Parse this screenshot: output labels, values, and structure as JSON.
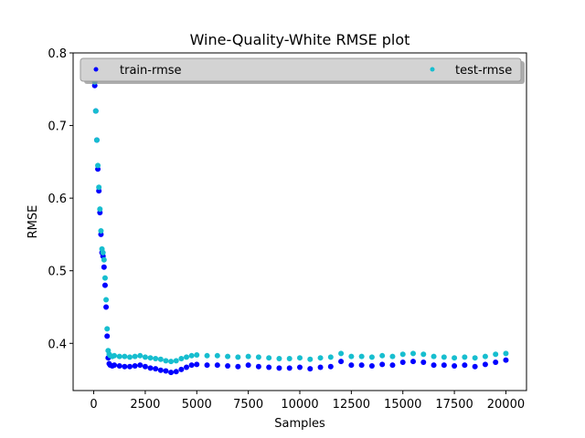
{
  "chart_data": {
    "type": "scatter",
    "title": "Wine-Quality-White RMSE plot",
    "xlabel": "Samples",
    "ylabel": "RMSE",
    "xlim": [
      -1000,
      21000
    ],
    "ylim": [
      0.335,
      0.8
    ],
    "xticks": [
      0,
      2500,
      5000,
      7500,
      10000,
      12500,
      15000,
      17500,
      20000
    ],
    "yticks": [
      0.4,
      0.5,
      0.6,
      0.7,
      0.8
    ],
    "xtick_labels": [
      "0",
      "2500",
      "5000",
      "7500",
      "10000",
      "12500",
      "15000",
      "17500",
      "20000"
    ],
    "ytick_labels": [
      "0.4",
      "0.5",
      "0.6",
      "0.7",
      "0.8"
    ],
    "grid": false,
    "legend": {
      "placement": "top",
      "entries": [
        "train-rmse",
        "test-rmse"
      ]
    },
    "series": [
      {
        "name": "train-rmse",
        "color": "#0000ff",
        "x": [
          0,
          50,
          100,
          150,
          200,
          250,
          300,
          350,
          400,
          450,
          500,
          550,
          600,
          650,
          700,
          750,
          800,
          900,
          1000,
          1250,
          1500,
          1750,
          2000,
          2250,
          2500,
          2750,
          3000,
          3250,
          3500,
          3750,
          4000,
          4250,
          4500,
          4750,
          5000,
          5500,
          6000,
          6500,
          7000,
          7500,
          8000,
          8500,
          9000,
          9500,
          10000,
          10500,
          11000,
          11500,
          12000,
          12500,
          13000,
          13500,
          14000,
          14500,
          15000,
          15500,
          16000,
          16500,
          17000,
          17500,
          18000,
          18500,
          19000,
          19500,
          20000
        ],
        "y": [
          0.77,
          0.755,
          0.72,
          0.68,
          0.64,
          0.61,
          0.58,
          0.55,
          0.525,
          0.52,
          0.505,
          0.48,
          0.45,
          0.41,
          0.38,
          0.372,
          0.37,
          0.369,
          0.37,
          0.369,
          0.368,
          0.368,
          0.369,
          0.37,
          0.368,
          0.366,
          0.365,
          0.363,
          0.362,
          0.36,
          0.361,
          0.364,
          0.367,
          0.37,
          0.371,
          0.37,
          0.37,
          0.369,
          0.368,
          0.37,
          0.368,
          0.367,
          0.366,
          0.366,
          0.367,
          0.365,
          0.367,
          0.368,
          0.375,
          0.37,
          0.37,
          0.369,
          0.371,
          0.37,
          0.374,
          0.375,
          0.374,
          0.37,
          0.37,
          0.369,
          0.37,
          0.368,
          0.371,
          0.374,
          0.377
        ]
      },
      {
        "name": "test-rmse",
        "color": "#17becf",
        "x": [
          0,
          50,
          100,
          150,
          200,
          250,
          300,
          350,
          400,
          450,
          500,
          550,
          600,
          650,
          700,
          750,
          800,
          900,
          1000,
          1250,
          1500,
          1750,
          2000,
          2250,
          2500,
          2750,
          3000,
          3250,
          3500,
          3750,
          4000,
          4250,
          4500,
          4750,
          5000,
          5500,
          6000,
          6500,
          7000,
          7500,
          8000,
          8500,
          9000,
          9500,
          10000,
          10500,
          11000,
          11500,
          12000,
          12500,
          13000,
          13500,
          14000,
          14500,
          15000,
          15500,
          16000,
          16500,
          17000,
          17500,
          18000,
          18500,
          19000,
          19500,
          20000
        ],
        "y": [
          0.77,
          0.76,
          0.72,
          0.68,
          0.645,
          0.615,
          0.585,
          0.555,
          0.53,
          0.525,
          0.515,
          0.49,
          0.46,
          0.42,
          0.39,
          0.385,
          0.383,
          0.382,
          0.383,
          0.382,
          0.382,
          0.381,
          0.382,
          0.383,
          0.381,
          0.38,
          0.379,
          0.378,
          0.376,
          0.375,
          0.376,
          0.379,
          0.381,
          0.383,
          0.384,
          0.383,
          0.383,
          0.382,
          0.381,
          0.382,
          0.381,
          0.38,
          0.379,
          0.379,
          0.38,
          0.378,
          0.38,
          0.381,
          0.386,
          0.382,
          0.382,
          0.381,
          0.383,
          0.382,
          0.385,
          0.386,
          0.385,
          0.382,
          0.381,
          0.38,
          0.381,
          0.38,
          0.382,
          0.385,
          0.386
        ]
      }
    ]
  }
}
